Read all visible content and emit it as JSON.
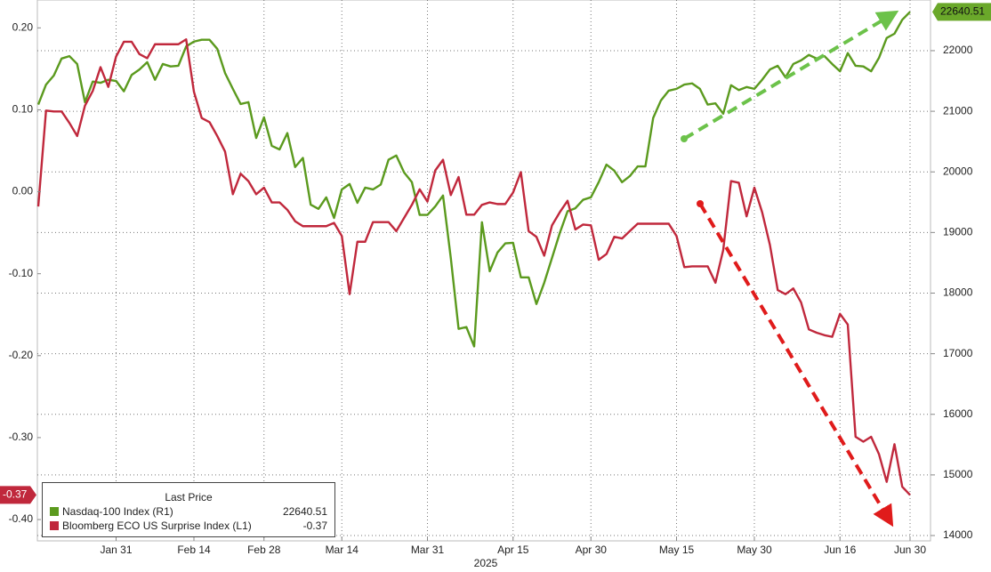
{
  "chart_data": {
    "type": "line",
    "xlabel": "2025",
    "categories": [
      null,
      null,
      null,
      null,
      null,
      null,
      null,
      null,
      null,
      null,
      "Jan 31",
      null,
      null,
      null,
      null,
      null,
      null,
      null,
      null,
      null,
      "Feb 14",
      null,
      null,
      null,
      null,
      null,
      null,
      null,
      null,
      "Feb 28",
      null,
      null,
      null,
      null,
      null,
      null,
      null,
      null,
      null,
      "Mar 14",
      null,
      null,
      null,
      null,
      null,
      null,
      null,
      null,
      null,
      null,
      "Mar 31",
      null,
      null,
      null,
      null,
      null,
      null,
      null,
      null,
      null,
      null,
      "Apr 15",
      null,
      null,
      null,
      null,
      null,
      null,
      null,
      null,
      null,
      "Apr 30",
      null,
      null,
      null,
      null,
      null,
      null,
      null,
      null,
      null,
      null,
      "May 15",
      null,
      null,
      null,
      null,
      null,
      null,
      null,
      null,
      null,
      "May 30",
      null,
      null,
      null,
      null,
      null,
      null,
      null,
      null,
      null,
      null,
      "Jun 16",
      null,
      null,
      null,
      null,
      null,
      null,
      null,
      null,
      "Jun 30"
    ],
    "series": [
      {
        "name": "Nasdaq-100 Index  (R1)",
        "color": "#5b9a1e",
        "axis": "y2",
        "values": [
          21110,
          21440,
          21590,
          21870,
          21910,
          21780,
          21150,
          21490,
          21470,
          21520,
          21500,
          21330,
          21600,
          21690,
          21810,
          21520,
          21780,
          21740,
          21750,
          22070,
          22150,
          22180,
          22180,
          22030,
          21630,
          21370,
          21120,
          21150,
          20560,
          20900,
          20430,
          20370,
          20640,
          20080,
          20230,
          19460,
          19390,
          19580,
          19240,
          19710,
          19800,
          19490,
          19740,
          19710,
          19790,
          20200,
          20270,
          19990,
          19830,
          19290,
          19290,
          19430,
          19610,
          18580,
          17410,
          17440,
          17120,
          19170,
          18360,
          18670,
          18820,
          18830,
          18260,
          18260,
          17820,
          18170,
          18580,
          18990,
          19350,
          19400,
          19540,
          19580,
          19830,
          20120,
          20020,
          19830,
          19930,
          20090,
          20090,
          20890,
          21180,
          21340,
          21370,
          21440,
          21460,
          21370,
          21110,
          21130,
          20960,
          21430,
          21350,
          21400,
          21370,
          21520,
          21690,
          21750,
          21560,
          21780,
          21840,
          21930,
          21870,
          21910,
          21780,
          21660,
          21960,
          21750,
          21740,
          21660,
          21880,
          22210,
          22280,
          22510,
          22640.51
        ]
      },
      {
        "name": "Bloomberg ECO US Surprise Index  (L1)",
        "color": "#c0283c",
        "axis": "y",
        "values": [
          -0.018,
          0.099,
          0.098,
          0.098,
          0.084,
          0.068,
          0.105,
          0.123,
          0.152,
          0.128,
          0.165,
          0.183,
          0.183,
          0.168,
          0.163,
          0.18,
          0.18,
          0.18,
          0.18,
          0.186,
          0.122,
          0.09,
          0.085,
          0.068,
          0.049,
          -0.003,
          0.022,
          0.013,
          -0.003,
          0.005,
          -0.013,
          -0.013,
          -0.022,
          -0.036,
          -0.042,
          -0.042,
          -0.042,
          -0.042,
          -0.038,
          -0.054,
          -0.125,
          -0.061,
          -0.061,
          -0.037,
          -0.037,
          -0.037,
          -0.048,
          -0.032,
          -0.016,
          0.003,
          -0.012,
          0.026,
          0.039,
          -0.004,
          0.018,
          -0.028,
          -0.028,
          -0.016,
          -0.013,
          -0.015,
          -0.015,
          -0.001,
          0.024,
          -0.048,
          -0.055,
          -0.078,
          -0.041,
          -0.025,
          -0.011,
          -0.046,
          -0.04,
          -0.041,
          -0.083,
          -0.076,
          -0.055,
          -0.057,
          -0.048,
          -0.039,
          -0.039,
          -0.039,
          -0.039,
          -0.039,
          -0.054,
          -0.092,
          -0.091,
          -0.091,
          -0.091,
          -0.111,
          -0.071,
          0.013,
          0.011,
          -0.03,
          0.005,
          -0.025,
          -0.065,
          -0.12,
          -0.125,
          -0.118,
          -0.135,
          -0.168,
          -0.172,
          -0.175,
          -0.177,
          -0.149,
          -0.162,
          -0.299,
          -0.305,
          -0.299,
          -0.32,
          -0.354,
          -0.308,
          -0.36,
          -0.37
        ]
      }
    ],
    "ylim": [
      -0.426,
      0.234
    ],
    "yticks": [
      {
        "value": 0.2,
        "label": "0.20"
      },
      {
        "value": 0.1,
        "label": "0.10"
      },
      {
        "value": 0,
        "label": "0.00"
      },
      {
        "value": -0.1,
        "label": "-0.10"
      },
      {
        "value": -0.2,
        "label": "-0.20"
      },
      {
        "value": -0.3,
        "label": "-0.30"
      },
      {
        "value": -0.4,
        "label": "-0.40"
      }
    ],
    "y2lim": [
      13912,
      22836
    ],
    "y2ticks": [
      14000,
      15000,
      16000,
      17000,
      18000,
      19000,
      20000,
      21000,
      22000
    ],
    "grid": true,
    "legend": {
      "title": "Last Price",
      "position": "lower left"
    }
  }
}
